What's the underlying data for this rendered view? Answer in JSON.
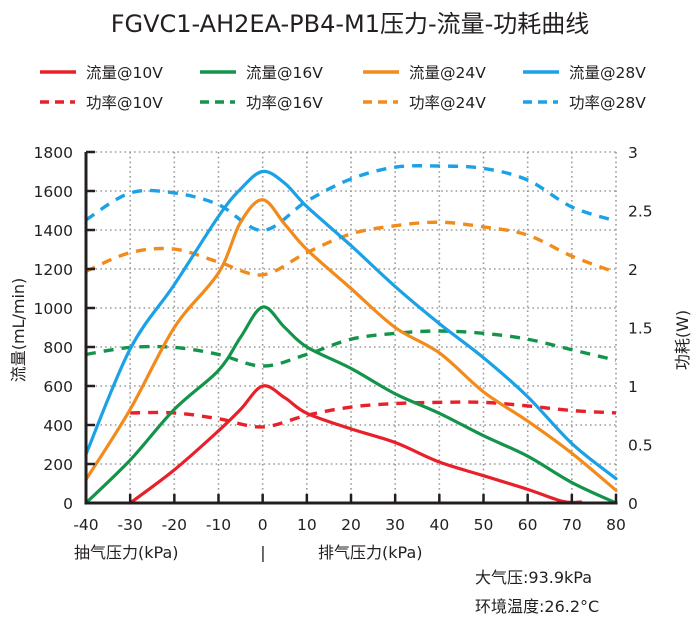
{
  "chart_data": {
    "type": "line",
    "title": "FGVC1-AH2EA-PB4-M1压力-流量-功耗曲线",
    "xlabel_left": "抽气压力(kPa)",
    "xlabel_separator": "|",
    "xlabel_right": "排气压力(kPa)",
    "ylabel": "流量(mL/min)",
    "y2label": "功耗(W)",
    "xlim": [
      -40,
      80
    ],
    "ylim": [
      0,
      1800
    ],
    "y2lim": [
      0,
      3
    ],
    "x_ticks": [
      -40,
      -30,
      -20,
      -10,
      0,
      10,
      20,
      30,
      40,
      50,
      60,
      70,
      80
    ],
    "x_tick_labels": [
      "-40",
      "-30",
      "-20",
      "-10",
      "0",
      "10",
      "20",
      "30",
      "40",
      "50",
      "60",
      "70",
      "80"
    ],
    "y_ticks": [
      0,
      200,
      400,
      600,
      800,
      1000,
      1200,
      1400,
      1600,
      1800
    ],
    "y_tick_labels": [
      "0",
      "200",
      "400",
      "600",
      "800",
      "1000",
      "1200",
      "1400",
      "1600",
      "1800"
    ],
    "y2_ticks": [
      0,
      0.5,
      1,
      1.5,
      2,
      2.5,
      3
    ],
    "y2_tick_labels": [
      "0",
      "0.5",
      "1",
      "1.5",
      "2",
      "2.5",
      "3"
    ],
    "grid": true,
    "legend_position": "top",
    "series": [
      {
        "name": "流量@10V",
        "axis": "left",
        "style": "solid",
        "color": "#e8202a",
        "x": [
          -30,
          -20,
          -10,
          -5,
          0,
          5,
          10,
          20,
          30,
          40,
          50,
          60,
          68,
          72
        ],
        "values": [
          0,
          170,
          370,
          480,
          600,
          540,
          460,
          380,
          310,
          210,
          140,
          70,
          8,
          5
        ]
      },
      {
        "name": "流量@16V",
        "axis": "left",
        "style": "solid",
        "color": "#13944a",
        "x": [
          -40,
          -30,
          -20,
          -10,
          -5,
          0,
          5,
          10,
          20,
          30,
          40,
          50,
          60,
          70,
          80
        ],
        "values": [
          0,
          220,
          480,
          680,
          850,
          1005,
          900,
          800,
          690,
          560,
          460,
          345,
          240,
          105,
          0
        ]
      },
      {
        "name": "流量@24V",
        "axis": "left",
        "style": "solid",
        "color": "#f28a1c",
        "x": [
          -40,
          -30,
          -20,
          -10,
          -5,
          0,
          5,
          10,
          20,
          30,
          40,
          50,
          60,
          70,
          80
        ],
        "values": [
          120,
          480,
          900,
          1180,
          1440,
          1555,
          1430,
          1300,
          1100,
          900,
          770,
          570,
          420,
          255,
          65
        ]
      },
      {
        "name": "流量@28V",
        "axis": "left",
        "style": "solid",
        "color": "#1aa1e6",
        "x": [
          -40,
          -30,
          -20,
          -10,
          -5,
          0,
          5,
          10,
          20,
          30,
          40,
          50,
          60,
          70,
          80
        ],
        "values": [
          250,
          790,
          1120,
          1470,
          1610,
          1700,
          1640,
          1520,
          1320,
          1110,
          920,
          745,
          545,
          305,
          125
        ]
      },
      {
        "name": "功率@10V",
        "axis": "right",
        "style": "dashed",
        "color": "#e8202a",
        "x": [
          -30,
          -20,
          -10,
          0,
          10,
          20,
          30,
          40,
          50,
          60,
          70,
          80
        ],
        "values": [
          0.77,
          0.77,
          0.72,
          0.65,
          0.75,
          0.82,
          0.85,
          0.86,
          0.86,
          0.83,
          0.79,
          0.77
        ]
      },
      {
        "name": "功率@16V",
        "axis": "right",
        "style": "dashed",
        "color": "#13944a",
        "x": [
          -40,
          -30,
          -20,
          -10,
          0,
          10,
          20,
          30,
          40,
          50,
          60,
          70,
          80
        ],
        "values": [
          1.27,
          1.33,
          1.33,
          1.27,
          1.17,
          1.27,
          1.4,
          1.45,
          1.47,
          1.45,
          1.4,
          1.31,
          1.22
        ]
      },
      {
        "name": "功率@24V",
        "axis": "right",
        "style": "dashed",
        "color": "#f28a1c",
        "x": [
          -40,
          -30,
          -20,
          -10,
          0,
          10,
          20,
          30,
          40,
          50,
          60,
          70,
          80
        ],
        "values": [
          1.98,
          2.14,
          2.17,
          2.06,
          1.95,
          2.14,
          2.3,
          2.37,
          2.4,
          2.36,
          2.29,
          2.11,
          1.97
        ]
      },
      {
        "name": "功率@28V",
        "axis": "right",
        "style": "dashed",
        "color": "#1aa1e6",
        "x": [
          -40,
          -30,
          -20,
          -10,
          0,
          10,
          20,
          30,
          40,
          50,
          60,
          70,
          80
        ],
        "values": [
          2.42,
          2.65,
          2.65,
          2.55,
          2.33,
          2.58,
          2.77,
          2.87,
          2.88,
          2.86,
          2.76,
          2.53,
          2.41
        ]
      }
    ],
    "annotations": [
      "大气压:93.9kPa",
      "环境温度:26.2°C"
    ]
  }
}
